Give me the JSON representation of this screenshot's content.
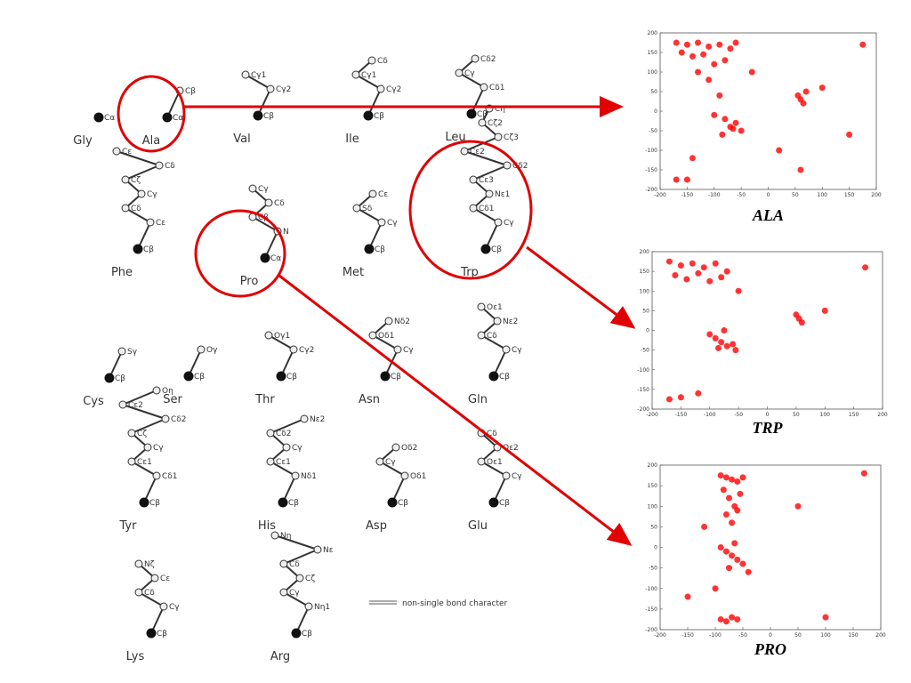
{
  "residues": [
    {
      "name": "Gly",
      "atoms": [
        "Cα"
      ]
    },
    {
      "name": "Ala",
      "atoms": [
        "Cβ",
        "Cα"
      ]
    },
    {
      "name": "Val",
      "atoms": [
        "Cγ1",
        "Cγ2",
        "Cβ"
      ]
    },
    {
      "name": "Ile",
      "atoms": [
        "Cδ",
        "Cγ1",
        "Cγ2",
        "Cβ"
      ]
    },
    {
      "name": "Leu",
      "atoms": [
        "Cδ2",
        "Cγ",
        "Cδ1",
        "Cβ"
      ]
    },
    {
      "name": "Phe",
      "atoms": [
        "Cε",
        "Cδ",
        "Cζ",
        "Cγ",
        "Cδ",
        "Cε",
        "Cβ"
      ]
    },
    {
      "name": "Pro",
      "atoms": [
        "Cγ",
        "Cδ",
        "Cβ",
        "N",
        "Cα"
      ]
    },
    {
      "name": "Met",
      "atoms": [
        "Cε",
        "Sδ",
        "Cγ",
        "Cβ"
      ]
    },
    {
      "name": "Trp",
      "atoms": [
        "Cη",
        "Cζ2",
        "Cζ3",
        "Cε2",
        "Cδ2",
        "Cε3",
        "Nε1",
        "Cδ1",
        "Cγ",
        "Cβ"
      ]
    },
    {
      "name": "Cys",
      "atoms": [
        "Sγ",
        "Cβ"
      ]
    },
    {
      "name": "Ser",
      "atoms": [
        "Oγ",
        "Cβ"
      ]
    },
    {
      "name": "Thr",
      "atoms": [
        "Oγ1",
        "Cγ2",
        "Cβ"
      ]
    },
    {
      "name": "Asn",
      "atoms": [
        "Nδ2",
        "Oδ1",
        "Cγ",
        "Cβ"
      ]
    },
    {
      "name": "Gln",
      "atoms": [
        "Oε1",
        "Nε2",
        "Cδ",
        "Cγ",
        "Cβ"
      ]
    },
    {
      "name": "Tyr",
      "atoms": [
        "Oη",
        "Cε2",
        "Cδ2",
        "Cζ",
        "Cγ",
        "Cε1",
        "Cδ1",
        "Cβ"
      ]
    },
    {
      "name": "His",
      "atoms": [
        "Nε2",
        "Cδ2",
        "Cγ",
        "Cε1",
        "Nδ1",
        "Cβ"
      ]
    },
    {
      "name": "Asp",
      "atoms": [
        "Oδ2",
        "Cγ",
        "Oδ1",
        "Cβ"
      ]
    },
    {
      "name": "Glu",
      "atoms": [
        "Cδ",
        "Oε2",
        "Oε1",
        "Cγ",
        "Cβ"
      ]
    },
    {
      "name": "Lys",
      "atoms": [
        "Nζ",
        "Cε",
        "Cδ",
        "Cγ",
        "Cβ"
      ]
    },
    {
      "name": "Arg",
      "atoms": [
        "Nη",
        "Nε",
        "Cδ",
        "Cζ",
        "Cγ",
        "Nη1",
        "Cβ"
      ]
    }
  ],
  "legend": "non-single bond character",
  "chart_data": [
    {
      "type": "scatter",
      "title": "ALA",
      "color": "#ff0000",
      "xlim": [
        -200,
        200
      ],
      "ylim": [
        -200,
        200
      ],
      "xticks": [
        -200,
        -150,
        -100,
        -50,
        0,
        50,
        100,
        150,
        200
      ],
      "yticks": [
        -200,
        -150,
        -100,
        -50,
        0,
        50,
        100,
        150,
        200
      ],
      "x": [
        -170,
        -150,
        -130,
        -110,
        -90,
        -70,
        -60,
        -160,
        -140,
        -120,
        -100,
        -80,
        -130,
        -110,
        -90,
        -80,
        -70,
        -60,
        -50,
        -100,
        -85,
        -65,
        55,
        60,
        65,
        70,
        -170,
        -150,
        175,
        -140,
        60,
        -30,
        20,
        100,
        150
      ],
      "y": [
        175,
        170,
        175,
        165,
        170,
        160,
        175,
        150,
        140,
        145,
        120,
        130,
        100,
        80,
        40,
        -20,
        -40,
        -30,
        -50,
        -10,
        -60,
        -45,
        40,
        30,
        20,
        50,
        -175,
        -175,
        170,
        -120,
        -150,
        100,
        -100,
        60,
        -60
      ]
    },
    {
      "type": "scatter",
      "title": "TRP",
      "color": "#ff0000",
      "xlim": [
        -200,
        200
      ],
      "ylim": [
        -200,
        200
      ],
      "xticks": [
        -200,
        -150,
        -100,
        -50,
        0,
        50,
        100,
        150,
        200
      ],
      "yticks": [
        -200,
        -150,
        -100,
        -50,
        0,
        50,
        100,
        150,
        200
      ],
      "x": [
        -170,
        -150,
        -130,
        -110,
        -90,
        -70,
        -160,
        -140,
        -120,
        -100,
        -80,
        -100,
        -90,
        -80,
        -70,
        -60,
        -55,
        -85,
        -75,
        50,
        55,
        60,
        -170,
        -150,
        -120,
        -50,
        100,
        170
      ],
      "y": [
        175,
        165,
        170,
        160,
        170,
        150,
        140,
        130,
        145,
        125,
        135,
        -10,
        -20,
        -30,
        -40,
        -35,
        -50,
        -45,
        0,
        40,
        30,
        20,
        -175,
        -170,
        -160,
        100,
        50,
        160
      ]
    },
    {
      "type": "scatter",
      "title": "PRO",
      "color": "#ff0000",
      "xlim": [
        -200,
        200
      ],
      "ylim": [
        -200,
        200
      ],
      "xticks": [
        -200,
        -150,
        -100,
        -50,
        0,
        50,
        100,
        150,
        200
      ],
      "yticks": [
        -200,
        -150,
        -100,
        -50,
        0,
        50,
        100,
        150,
        200
      ],
      "x": [
        -90,
        -80,
        -70,
        -60,
        -50,
        -85,
        -75,
        -65,
        -55,
        -80,
        -70,
        -60,
        -90,
        -80,
        -70,
        -60,
        -50,
        -75,
        -65,
        -90,
        -80,
        -70,
        -60,
        -100,
        -120,
        -40,
        50,
        100,
        170,
        -150
      ],
      "y": [
        175,
        170,
        165,
        160,
        170,
        140,
        120,
        100,
        130,
        80,
        60,
        90,
        0,
        -10,
        -20,
        -30,
        -40,
        -50,
        10,
        -175,
        -180,
        -170,
        -175,
        -100,
        50,
        -60,
        100,
        -170,
        180,
        -120
      ]
    }
  ]
}
